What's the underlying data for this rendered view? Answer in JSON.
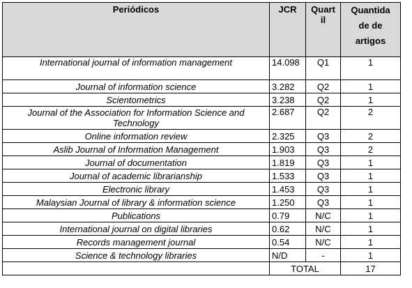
{
  "table": {
    "headers": {
      "journal": "Periódicos",
      "jcr": "JCR",
      "quartil_lines": [
        "Quart",
        "il"
      ],
      "quantidade_lines": [
        "Quantida",
        "de de",
        "artigos"
      ]
    },
    "rows": [
      {
        "journal": "International journal of information management",
        "jcr": "14.098",
        "quartil": "Q1",
        "quantidade": "1"
      },
      {
        "journal": "Journal of information science",
        "jcr": "3.282",
        "quartil": "Q2",
        "quantidade": "1"
      },
      {
        "journal": "Scientometrics",
        "jcr": "3.238",
        "quartil": "Q2",
        "quantidade": "1"
      },
      {
        "journal": "Journal of  the Association for Information Science and Technology",
        "jcr": "2.687",
        "quartil": "Q2",
        "quantidade": "2"
      },
      {
        "journal": "Online information review",
        "jcr": "2.325",
        "quartil": "Q3",
        "quantidade": "2"
      },
      {
        "journal": "Aslib Journal of Information Management",
        "jcr": "1.903",
        "quartil": "Q3",
        "quantidade": "2"
      },
      {
        "journal": "Journal of documentation",
        "jcr": "1.819",
        "quartil": "Q3",
        "quantidade": "1"
      },
      {
        "journal": "Journal of academic librarianship",
        "jcr": "1.533",
        "quartil": "Q3",
        "quantidade": "1"
      },
      {
        "journal": "Electronic library",
        "jcr": "1.453",
        "quartil": "Q3",
        "quantidade": "1"
      },
      {
        "journal": "Malaysian Journal of library & information science",
        "jcr": "1.250",
        "quartil": "Q3",
        "quantidade": "1"
      },
      {
        "journal": "Publications",
        "jcr": "0.79",
        "quartil": "N/C",
        "quantidade": "1"
      },
      {
        "journal": "International journal on digital libraries",
        "jcr": "0.62",
        "quartil": "N/C",
        "quantidade": "1"
      },
      {
        "journal": "Records management journal",
        "jcr": "0.54",
        "quartil": "N/C",
        "quantidade": "1"
      },
      {
        "journal": "Science & technology libraries",
        "jcr": "N/D",
        "quartil": "-",
        "quantidade": "1"
      }
    ],
    "total": {
      "label": "TOTAL",
      "value": "17"
    }
  }
}
